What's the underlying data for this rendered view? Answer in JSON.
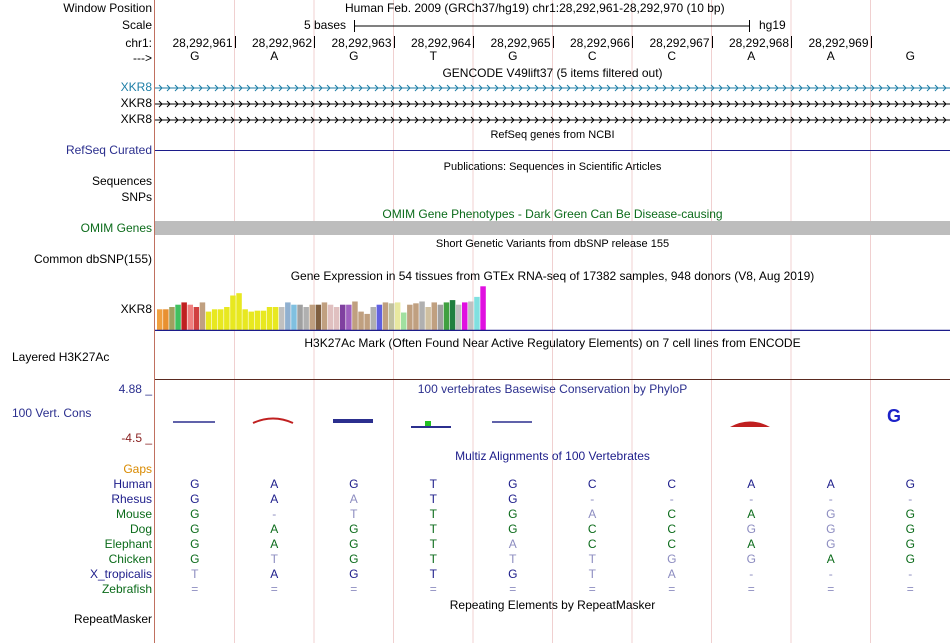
{
  "ruler": {
    "window_position_label": "Window Position",
    "window_position_text": "Human Feb. 2009 (GRCh37/hg19)   chr1:28,292,961-28,292,970 (10 bp)",
    "scale_label": "Scale",
    "scale_text": "5 bases",
    "scale_db": "hg19",
    "chrom_label": "chr1:",
    "strand_label": "--->",
    "coords": [
      "28,292,961",
      "28,292,962",
      "28,292,963",
      "28,292,964",
      "28,292,965",
      "28,292,966",
      "28,292,967",
      "28,292,968",
      "28,292,969"
    ],
    "bases": [
      "G",
      "A",
      "G",
      "T",
      "G",
      "C",
      "C",
      "A",
      "A",
      "G"
    ]
  },
  "gencode": {
    "title": "GENCODE V49lift37 (5 items filtered out)",
    "tracks": [
      "XKR8",
      "XKR8",
      "XKR8"
    ],
    "colors": [
      "#1d7ea6",
      "#000000",
      "#000000"
    ]
  },
  "refseq": {
    "title": "RefSeq genes from NCBI",
    "label": "RefSeq Curated"
  },
  "publications": {
    "title": "Publications: Sequences in Scientific Articles",
    "sequences_label": "Sequences",
    "snps_label": "SNPs"
  },
  "omim": {
    "title": "OMIM Gene Phenotypes - Dark Green Can Be Disease-causing",
    "label": "OMIM Genes"
  },
  "dbsnp": {
    "title": "Short Genetic Variants from dbSNP release 155",
    "label": "Common dbSNP(155)"
  },
  "gtex": {
    "title": "Gene Expression in 54 tissues from GTEx RNA-seq of 17382 samples, 948 donors (V8, Aug 2019)",
    "label": "XKR8",
    "bars": [
      0.45,
      0.45,
      0.5,
      0.55,
      0.6,
      0.55,
      0.5,
      0.6,
      0.4,
      0.45,
      0.45,
      0.5,
      0.75,
      0.8,
      0.45,
      0.4,
      0.42,
      0.42,
      0.5,
      0.5,
      0.5,
      0.6,
      0.55,
      0.55,
      0.5,
      0.55,
      0.55,
      0.6,
      0.55,
      0.5,
      0.55,
      0.55,
      0.62,
      0.4,
      0.35,
      0.5,
      0.55,
      0.6,
      0.58,
      0.6,
      0.38,
      0.55,
      0.58,
      0.62,
      0.5,
      0.6,
      0.55,
      0.6,
      0.65,
      0.55,
      0.6,
      0.62,
      0.72,
      0.95
    ],
    "colors": [
      "#f0a040",
      "#e89030",
      "#a0a060",
      "#40c060",
      "#c02020",
      "#f08080",
      "#d04040",
      "#c0a080",
      "#e8e820",
      "#e8e820",
      "#e8e820",
      "#e8e820",
      "#e8e820",
      "#e8e820",
      "#e8e820",
      "#e8e820",
      "#e8e820",
      "#e8e820",
      "#e8e820",
      "#e8e820",
      "#c0c0c0",
      "#90b0d0",
      "#80c0e0",
      "#a0a0a0",
      "#b0b0b0",
      "#c0a080",
      "#806040",
      "#c0a080",
      "#e0c0c0",
      "#e0c0c0",
      "#8040a0",
      "#a060c0",
      "#c0a080",
      "#c0a080",
      "#c0a080",
      "#b0b0b0",
      "#6060e0",
      "#c0a080",
      "#c0c0a0",
      "#e8e8a0",
      "#a0e0a0",
      "#c0a080",
      "#c0a080",
      "#b0b0b0",
      "#d0c0a0",
      "#c0a080",
      "#a0a0a0",
      "#40a040",
      "#208040",
      "#c0c0c0",
      "#e010e0",
      "#c0c0c0",
      "#80e0e0",
      "#e010e0"
    ]
  },
  "h3k27ac": {
    "title": "H3K27Ac Mark (Often Found Near Active Regulatory Elements) on 7 cell lines from ENCODE",
    "label": "Layered H3K27Ac"
  },
  "conservation": {
    "title": "100 vertebrates Basewise Conservation by PhyloP",
    "label": "100 Vert. Cons",
    "max": "4.88 _",
    "min": "-4.5 _"
  },
  "multiz": {
    "title": "Multiz Alignments of 100 Vertebrates",
    "gaps_label": "Gaps",
    "species": [
      {
        "name": "Human",
        "color": "#1c1c8a",
        "bases": [
          "G",
          "A",
          "G",
          "T",
          "G",
          "C",
          "C",
          "A",
          "A",
          "G"
        ],
        "dim": [
          0,
          0,
          0,
          0,
          0,
          0,
          0,
          0,
          0,
          0
        ]
      },
      {
        "name": "Rhesus",
        "color": "#1c1c8a",
        "bases": [
          "G",
          "A",
          "A",
          "T",
          "G",
          "-",
          "-",
          "-",
          "-",
          "-"
        ],
        "dim": [
          0,
          0,
          1,
          0,
          0,
          1,
          1,
          1,
          1,
          1
        ]
      },
      {
        "name": "Mouse",
        "color": "#0b6b1a",
        "bases": [
          "G",
          "-",
          "T",
          "T",
          "G",
          "A",
          "C",
          "A",
          "G",
          "G"
        ],
        "dim": [
          0,
          1,
          1,
          0,
          0,
          1,
          0,
          0,
          1,
          0
        ]
      },
      {
        "name": "Dog",
        "color": "#0b6b1a",
        "bases": [
          "G",
          "A",
          "G",
          "T",
          "G",
          "C",
          "C",
          "G",
          "G",
          "G"
        ],
        "dim": [
          0,
          0,
          0,
          0,
          0,
          0,
          0,
          1,
          1,
          0
        ]
      },
      {
        "name": "Elephant",
        "color": "#0b6b1a",
        "bases": [
          "G",
          "A",
          "G",
          "T",
          "A",
          "C",
          "C",
          "A",
          "G",
          "G"
        ],
        "dim": [
          0,
          0,
          0,
          0,
          1,
          0,
          0,
          0,
          1,
          0
        ]
      },
      {
        "name": "Chicken",
        "color": "#0b6b1a",
        "bases": [
          "G",
          "T",
          "G",
          "T",
          "T",
          "T",
          "G",
          "G",
          "A",
          "G"
        ],
        "dim": [
          0,
          1,
          0,
          0,
          1,
          1,
          1,
          1,
          0,
          0
        ]
      },
      {
        "name": "X_tropicalis",
        "color": "#1c1c8a",
        "bases": [
          "T",
          "A",
          "G",
          "T",
          "G",
          "T",
          "A",
          "-",
          "-",
          "-"
        ],
        "dim": [
          1,
          0,
          0,
          0,
          0,
          1,
          1,
          1,
          1,
          1
        ]
      },
      {
        "name": "Zebrafish",
        "color": "#0b6b1a",
        "bases": [
          "=",
          "=",
          "=",
          "=",
          "=",
          "=",
          "=",
          "=",
          "=",
          "="
        ],
        "dim": [
          1,
          1,
          1,
          1,
          1,
          1,
          1,
          1,
          1,
          1
        ]
      }
    ]
  },
  "repeatmasker": {
    "title": "Repeating Elements by RepeatMasker",
    "label": "RepeatMasker"
  }
}
